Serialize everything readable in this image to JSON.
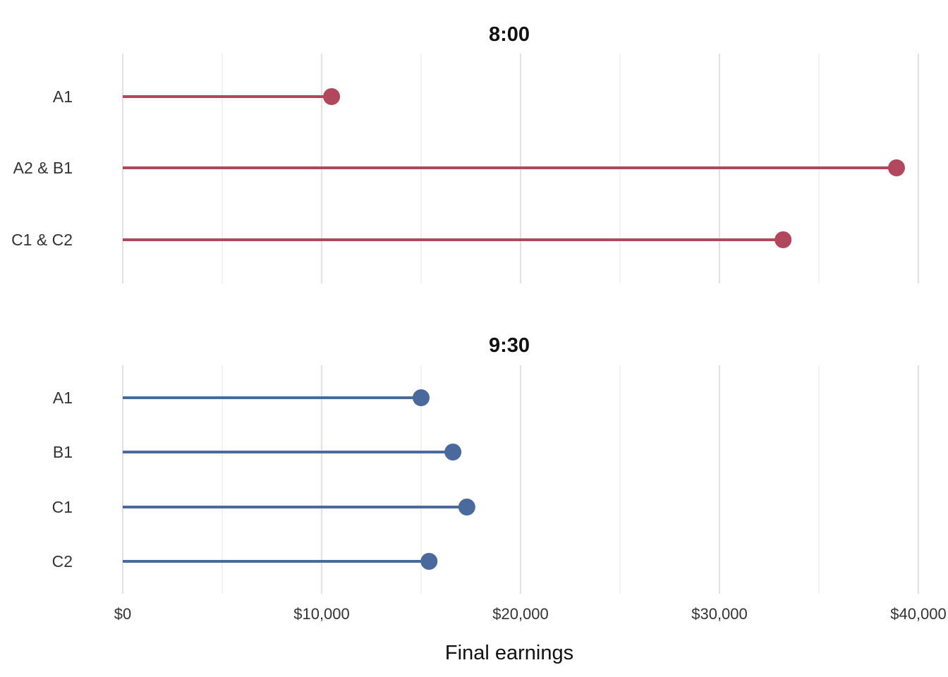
{
  "chart_data": {
    "type": "lollipop",
    "xlabel": "Final earnings",
    "xlim": [
      0,
      40000
    ],
    "x_ticks": [
      0,
      10000,
      20000,
      30000,
      40000
    ],
    "x_tick_labels": [
      "$0",
      "$10,000",
      "$20,000",
      "$30,000",
      "$40,000"
    ],
    "grid": true,
    "panels": [
      {
        "title": "8:00",
        "color": "#b0475a",
        "categories": [
          "A1",
          "A2 & B1",
          "C1 & C2"
        ],
        "values": [
          10500,
          38900,
          33200
        ]
      },
      {
        "title": "9:30",
        "color": "#4a6a9e",
        "categories": [
          "A1",
          "B1",
          "C1",
          "C2"
        ],
        "values": [
          15000,
          16600,
          17300,
          15400
        ]
      }
    ]
  }
}
